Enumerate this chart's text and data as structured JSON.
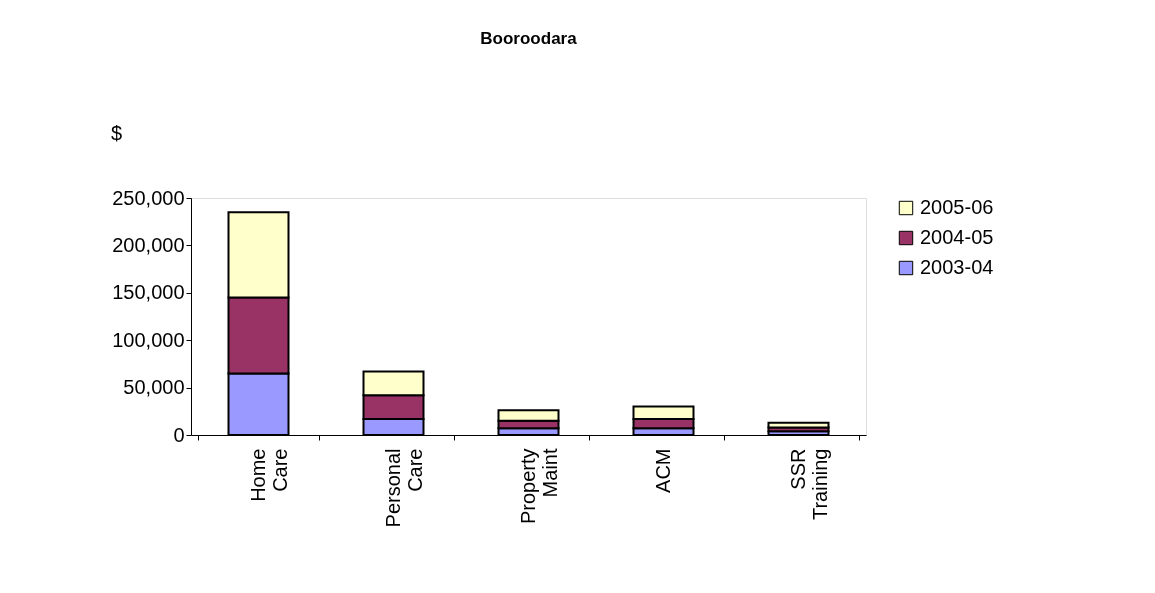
{
  "chart_data": {
    "type": "bar",
    "title": "Booroodara",
    "ylabel": "$",
    "stacked": true,
    "categories": [
      "Home Care",
      "Personal Care",
      "Property Maint",
      "ACM",
      "SSR Training"
    ],
    "series": [
      {
        "name": "2003-04",
        "color": "#9999ff",
        "values": [
          65000,
          17000,
          7000,
          7000,
          4000
        ]
      },
      {
        "name": "2004-05",
        "color": "#993366",
        "values": [
          80000,
          25000,
          8000,
          10000,
          4000
        ]
      },
      {
        "name": "2005-06",
        "color": "#ffffcc",
        "values": [
          90000,
          25000,
          11000,
          13000,
          5000
        ]
      }
    ],
    "ylim": [
      0,
      250000
    ],
    "yticks": [
      0,
      {
        "value": 50000,
        "label": "50,000"
      },
      {
        "value": 100000,
        "label": "100,000"
      },
      {
        "value": 150000,
        "label": "150,000"
      },
      {
        "value": 200000,
        "label": "200,000"
      },
      {
        "value": 250000,
        "label": "250,000"
      }
    ],
    "grid": false,
    "legend": "right"
  }
}
